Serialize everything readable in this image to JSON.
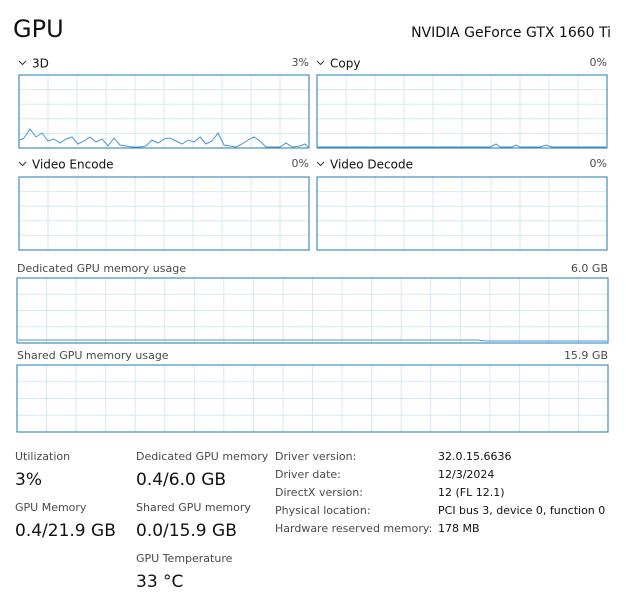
{
  "header": {
    "title": "GPU",
    "device": "NVIDIA GeForce GTX 1660 Ti"
  },
  "graphs": [
    {
      "label": "3D",
      "value": "3%"
    },
    {
      "label": "Copy",
      "value": "0%"
    },
    {
      "label": "Video Encode",
      "value": "0%"
    },
    {
      "label": "Video Decode",
      "value": "0%"
    }
  ],
  "memory_graphs": [
    {
      "label": "Dedicated GPU memory usage",
      "value": "6.0 GB"
    },
    {
      "label": "Shared GPU memory usage",
      "value": "15.9 GB"
    }
  ],
  "stats": [
    {
      "label": "Utilization",
      "value": "3%"
    },
    {
      "label": "GPU Memory",
      "value": "0.4/21.9 GB"
    },
    {
      "label": "Dedicated GPU memory",
      "value": "0.4/6.0 GB"
    },
    {
      "label": "Shared GPU memory",
      "value": "0.0/15.9 GB"
    },
    {
      "label": "GPU Temperature",
      "value": "33 °C"
    }
  ],
  "details": [
    {
      "label": "Driver version:",
      "value": "32.0.15.6636"
    },
    {
      "label": "Driver date:",
      "value": "12/3/2024"
    },
    {
      "label": "DirectX version:",
      "value": "12 (FL 12.1)"
    },
    {
      "label": "Physical location:",
      "value": "PCI bus 3, device 0, function 0"
    },
    {
      "label": "Hardware reserved memory:",
      "value": "178 MB"
    }
  ]
}
